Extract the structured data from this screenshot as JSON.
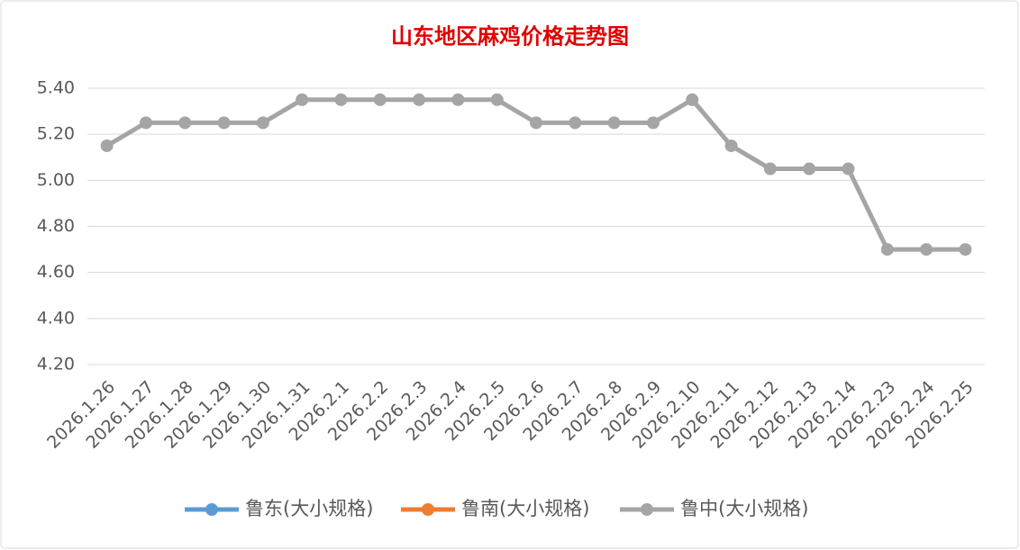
{
  "chart_data": {
    "type": "line",
    "title": "山东地区麻鸡价格走势图",
    "categories": [
      "2026.1.26",
      "2026.1.27",
      "2026.1.28",
      "2026.1.29",
      "2026.1.30",
      "2026.1.31",
      "2026.2.1",
      "2026.2.2",
      "2026.2.3",
      "2026.2.4",
      "2026.2.5",
      "2026.2.6",
      "2026.2.7",
      "2026.2.8",
      "2026.2.9",
      "2026.2.10",
      "2026.2.11",
      "2026.2.12",
      "2026.2.13",
      "2026.2.14",
      "2026.2.23",
      "2026.2.24",
      "2026.2.25"
    ],
    "series": [
      {
        "name": "鲁东(大小规格)",
        "color": "#5b9bd5",
        "values": [
          null,
          null,
          null,
          null,
          null,
          null,
          null,
          null,
          null,
          null,
          null,
          null,
          null,
          null,
          null,
          null,
          null,
          null,
          null,
          null,
          null,
          null,
          null
        ]
      },
      {
        "name": "鲁南(大小规格)",
        "color": "#ed7d31",
        "values": [
          null,
          null,
          null,
          null,
          null,
          null,
          null,
          null,
          null,
          null,
          null,
          null,
          null,
          null,
          null,
          null,
          null,
          null,
          null,
          null,
          null,
          null,
          null
        ]
      },
      {
        "name": "鲁中(大小规格)",
        "color": "#a5a5a5",
        "values": [
          5.15,
          5.25,
          5.25,
          5.25,
          5.25,
          5.35,
          5.35,
          5.35,
          5.35,
          5.35,
          5.35,
          5.25,
          5.25,
          5.25,
          5.25,
          5.35,
          5.15,
          5.05,
          5.05,
          5.05,
          4.7,
          4.7,
          4.7
        ]
      }
    ],
    "ylim": [
      4.2,
      5.4
    ],
    "yticks": [
      {
        "value": 4.2,
        "label": "4.20"
      },
      {
        "value": 4.4,
        "label": "4.40"
      },
      {
        "value": 4.6,
        "label": "4.60"
      },
      {
        "value": 4.8,
        "label": "4.80"
      },
      {
        "value": 5.0,
        "label": "5.00"
      },
      {
        "value": 5.2,
        "label": "5.20"
      },
      {
        "value": 5.4,
        "label": "5.40"
      }
    ],
    "grid": true
  }
}
